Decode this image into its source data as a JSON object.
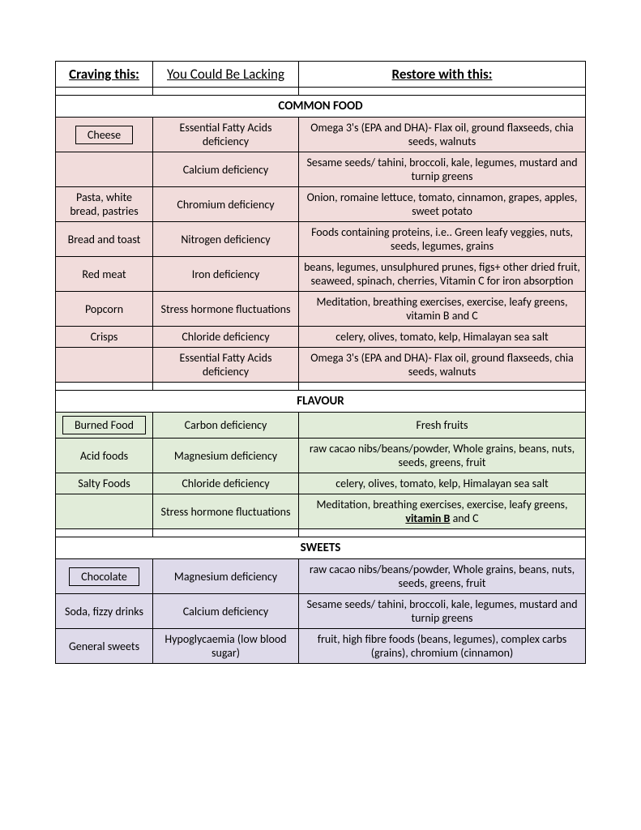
{
  "headers": {
    "col1": "Craving this:",
    "col2": "You Could Be Lacking",
    "col3": "Restore with this:"
  },
  "sections": [
    {
      "title": "COMMON FOOD",
      "colorClass": "pink",
      "rows": [
        {
          "craving": "Cheese",
          "boxed": true,
          "lacking": "Essential Fatty Acids deficiency",
          "restore": "Omega 3's (EPA and DHA)- Flax oil, ground flaxseeds, chia seeds, walnuts"
        },
        {
          "craving": "",
          "lacking": "Calcium deficiency",
          "restore": "Sesame seeds/ tahini, broccoli, kale, legumes, mustard and turnip greens"
        },
        {
          "craving": "Pasta, white bread, pastries",
          "lacking": "Chromium deficiency",
          "restore": "Onion, romaine lettuce, tomato, cinnamon, grapes, apples, sweet potato"
        },
        {
          "craving": "Bread and toast",
          "lacking": "Nitrogen deficiency",
          "restore": "Foods containing proteins, i.e.. Green leafy veggies, nuts, seeds, legumes, grains"
        },
        {
          "craving": "Red meat",
          "lacking": "Iron deficiency",
          "restore": "beans, legumes, unsulphured prunes, figs+ other dried fruit, seaweed, spinach, cherries, Vitamin C for iron absorption"
        },
        {
          "craving": "Popcorn",
          "lacking": "Stress hormone fluctuations",
          "restore": "Meditation, breathing exercises, exercise, leafy greens, vitamin B and C"
        },
        {
          "craving": "Crisps",
          "lacking": "Chloride deficiency",
          "restore": "celery, olives, tomato, kelp, Himalayan sea salt"
        },
        {
          "craving": "",
          "lacking": "Essential Fatty Acids deficiency",
          "restore": "Omega 3's (EPA and DHA)- Flax oil, ground flaxseeds, chia seeds, walnuts"
        }
      ]
    },
    {
      "title": "FLAVOUR",
      "colorClass": "green",
      "rows": [
        {
          "craving": "Burned Food",
          "boxed": true,
          "lacking": "Carbon deficiency",
          "restore": "Fresh fruits"
        },
        {
          "craving": "Acid foods",
          "lacking": "Magnesium deficiency",
          "restore": "raw cacao nibs/beans/powder, Whole grains, beans, nuts, seeds, greens, fruit"
        },
        {
          "craving": "Salty Foods",
          "lacking": "Chloride deficiency",
          "restore": "celery, olives, tomato, kelp, Himalayan sea salt"
        },
        {
          "craving": "",
          "lacking": "Stress hormone fluctuations",
          "restore_pre": "Meditation, breathing exercises, exercise, leafy greens, ",
          "restore_link": "vitamin B",
          "restore_post": " and C"
        }
      ]
    },
    {
      "title": "SWEETS",
      "colorClass": "purple",
      "rows": [
        {
          "craving": "Chocolate",
          "boxed": true,
          "lacking": "Magnesium deficiency",
          "restore": "raw cacao nibs/beans/powder, Whole grains, beans, nuts, seeds, greens, fruit"
        },
        {
          "craving": "Soda, fizzy drinks",
          "lacking": "Calcium deficiency",
          "restore": "Sesame seeds/ tahini, broccoli, kale, legumes, mustard and turnip greens"
        },
        {
          "craving": "General sweets",
          "lacking": "Hypoglycaemia (low blood sugar)",
          "restore": "fruit, high fibre foods (beans, legumes), complex carbs (grains), chromium (cinnamon)"
        }
      ]
    }
  ]
}
